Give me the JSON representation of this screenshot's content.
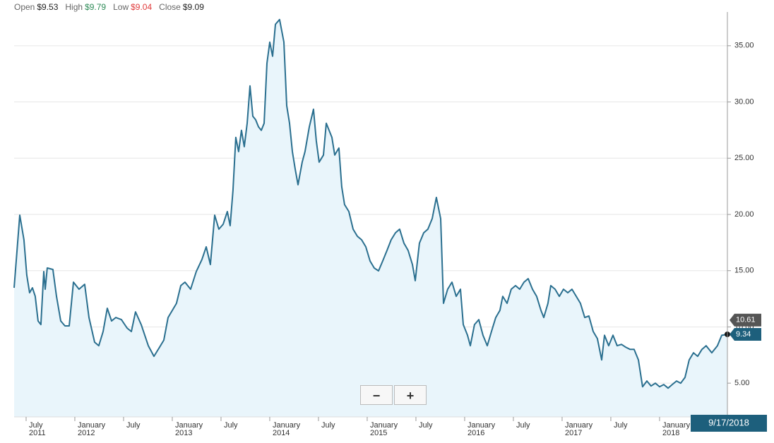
{
  "ohlc": [
    {
      "label": "Open",
      "value": "$9.53",
      "color": "#222222"
    },
    {
      "label": "High",
      "value": "$9.79",
      "color": "#2e8b57"
    },
    {
      "label": "Low",
      "value": "$9.04",
      "color": "#e03a3a"
    },
    {
      "label": "Close",
      "value": "$9.09",
      "color": "#222222"
    }
  ],
  "zoom_controls": [
    "−",
    "+"
  ],
  "chart_data": {
    "type": "area",
    "color": "#2a6f8f",
    "fill": "#e9f5fb",
    "grid": true,
    "xlim": [
      2011.377,
      2018.696
    ],
    "ylim": [
      2,
      38
    ],
    "yticks": [
      {
        "value": 5,
        "label": "5.00"
      },
      {
        "value": 10,
        "label": "10.00"
      },
      {
        "value": 15,
        "label": "15.00"
      },
      {
        "value": 20,
        "label": "20.00"
      },
      {
        "value": 25,
        "label": "25.00"
      },
      {
        "value": 30,
        "label": "30.00"
      },
      {
        "value": 35,
        "label": "35.00"
      }
    ],
    "xticks": [
      {
        "value": 2011.5,
        "label": "July\n2011"
      },
      {
        "value": 2012.0,
        "label": "January\n2012"
      },
      {
        "value": 2012.5,
        "label": "July"
      },
      {
        "value": 2013.0,
        "label": "January\n2013"
      },
      {
        "value": 2013.5,
        "label": "July"
      },
      {
        "value": 2014.0,
        "label": "January\n2014"
      },
      {
        "value": 2014.5,
        "label": "July"
      },
      {
        "value": 2015.0,
        "label": "January\n2015"
      },
      {
        "value": 2015.5,
        "label": "July"
      },
      {
        "value": 2016.0,
        "label": "January\n2016"
      },
      {
        "value": 2016.5,
        "label": "July"
      },
      {
        "value": 2017.0,
        "label": "January\n2017"
      },
      {
        "value": 2017.5,
        "label": "July"
      },
      {
        "value": 2018.0,
        "label": "January\n2018"
      }
    ],
    "reference_value": 10.61,
    "cursor_date": "9/17/2018",
    "x": [
      2011.377,
      2011.435,
      2011.478,
      2011.507,
      2011.536,
      2011.565,
      2011.594,
      2011.623,
      2011.652,
      2011.681,
      2011.696,
      2011.717,
      2011.775,
      2011.812,
      2011.855,
      2011.899,
      2011.942,
      2011.986,
      2012.043,
      2012.101,
      2012.145,
      2012.203,
      2012.246,
      2012.29,
      2012.333,
      2012.377,
      2012.42,
      2012.478,
      2012.536,
      2012.58,
      2012.623,
      2012.681,
      2012.754,
      2012.812,
      2012.87,
      2012.913,
      2012.957,
      2013.0,
      2013.043,
      2013.087,
      2013.13,
      2013.188,
      2013.246,
      2013.304,
      2013.348,
      2013.391,
      2013.435,
      2013.478,
      2013.522,
      2013.565,
      2013.594,
      2013.623,
      2013.652,
      2013.681,
      2013.71,
      2013.739,
      2013.768,
      2013.797,
      2013.826,
      2013.855,
      2013.884,
      2013.913,
      2013.942,
      2013.971,
      2014.0,
      2014.029,
      2014.058,
      2014.101,
      2014.145,
      2014.174,
      2014.203,
      2014.232,
      2014.261,
      2014.29,
      2014.333,
      2014.362,
      2014.406,
      2014.449,
      2014.478,
      2014.507,
      2014.551,
      2014.58,
      2014.609,
      2014.638,
      2014.667,
      2014.71,
      2014.739,
      2014.768,
      2014.812,
      2014.855,
      2014.899,
      2014.942,
      2014.986,
      2015.029,
      2015.072,
      2015.116,
      2015.159,
      2015.203,
      2015.246,
      2015.29,
      2015.333,
      2015.377,
      2015.42,
      2015.464,
      2015.493,
      2015.536,
      2015.58,
      2015.623,
      2015.667,
      2015.71,
      2015.754,
      2015.783,
      2015.826,
      2015.87,
      2015.913,
      2015.957,
      2015.986,
      2016.029,
      2016.058,
      2016.101,
      2016.145,
      2016.188,
      2016.232,
      2016.275,
      2016.319,
      2016.362,
      2016.391,
      2016.435,
      2016.478,
      2016.522,
      2016.565,
      2016.609,
      2016.652,
      2016.696,
      2016.739,
      2016.783,
      2016.812,
      2016.855,
      2016.884,
      2016.928,
      2016.971,
      2017.014,
      2017.058,
      2017.101,
      2017.145,
      2017.188,
      2017.232,
      2017.275,
      2017.319,
      2017.362,
      2017.406,
      2017.435,
      2017.478,
      2017.522,
      2017.565,
      2017.609,
      2017.652,
      2017.696,
      2017.739,
      2017.783,
      2017.826,
      2017.87,
      2017.913,
      2017.957,
      2018.0,
      2018.043,
      2018.087,
      2018.13,
      2018.174,
      2018.217,
      2018.261,
      2018.304,
      2018.348,
      2018.391,
      2018.435,
      2018.478,
      2018.536,
      2018.594,
      2018.638,
      2018.696
    ],
    "values": [
      13.48,
      19.94,
      17.75,
      14.61,
      13.04,
      13.48,
      12.72,
      10.53,
      10.21,
      14.92,
      13.35,
      15.24,
      15.11,
      12.72,
      10.53,
      10.09,
      10.09,
      13.98,
      13.35,
      13.79,
      10.84,
      8.64,
      8.33,
      9.59,
      11.66,
      10.53,
      10.84,
      10.65,
      9.9,
      9.59,
      11.34,
      10.21,
      8.33,
      7.39,
      8.2,
      8.83,
      10.84,
      11.47,
      12.1,
      13.67,
      13.98,
      13.35,
      14.92,
      15.99,
      17.12,
      15.55,
      19.94,
      18.69,
      19.13,
      20.26,
      19.0,
      22.14,
      26.85,
      25.59,
      27.48,
      26.03,
      28.1,
      31.43,
      28.73,
      28.42,
      27.79,
      27.48,
      28.1,
      33.44,
      35.32,
      34.07,
      36.9,
      37.33,
      35.32,
      29.67,
      28.1,
      25.59,
      24.03,
      22.64,
      24.65,
      25.59,
      27.79,
      29.35,
      26.53,
      24.65,
      25.28,
      28.1,
      27.48,
      26.85,
      25.28,
      25.91,
      22.45,
      20.88,
      20.26,
      18.69,
      18.06,
      17.75,
      17.12,
      15.86,
      15.24,
      14.98,
      15.86,
      16.8,
      17.75,
      18.37,
      18.69,
      17.44,
      16.8,
      15.55,
      14.11,
      17.44,
      18.37,
      18.69,
      19.63,
      21.51,
      19.63,
      12.1,
      13.35,
      13.98,
      12.72,
      13.35,
      10.21,
      9.26,
      8.33,
      10.21,
      10.65,
      9.26,
      8.33,
      9.59,
      10.84,
      11.47,
      12.72,
      12.1,
      13.35,
      13.67,
      13.35,
      13.98,
      14.29,
      13.35,
      12.72,
      11.47,
      10.84,
      12.1,
      13.67,
      13.35,
      12.72,
      13.35,
      13.04,
      13.35,
      12.72,
      12.1,
      10.84,
      10.97,
      9.59,
      8.96,
      7.07,
      9.26,
      8.33,
      9.26,
      8.33,
      8.45,
      8.2,
      8.01,
      8.01,
      7.07,
      4.68,
      5.19,
      4.75,
      5.0,
      4.68,
      4.88,
      4.56,
      4.88,
      5.19,
      5.0,
      5.51,
      7.07,
      7.7,
      7.39,
      8.01,
      8.33,
      7.7,
      8.33,
      9.26,
      9.34
    ]
  }
}
